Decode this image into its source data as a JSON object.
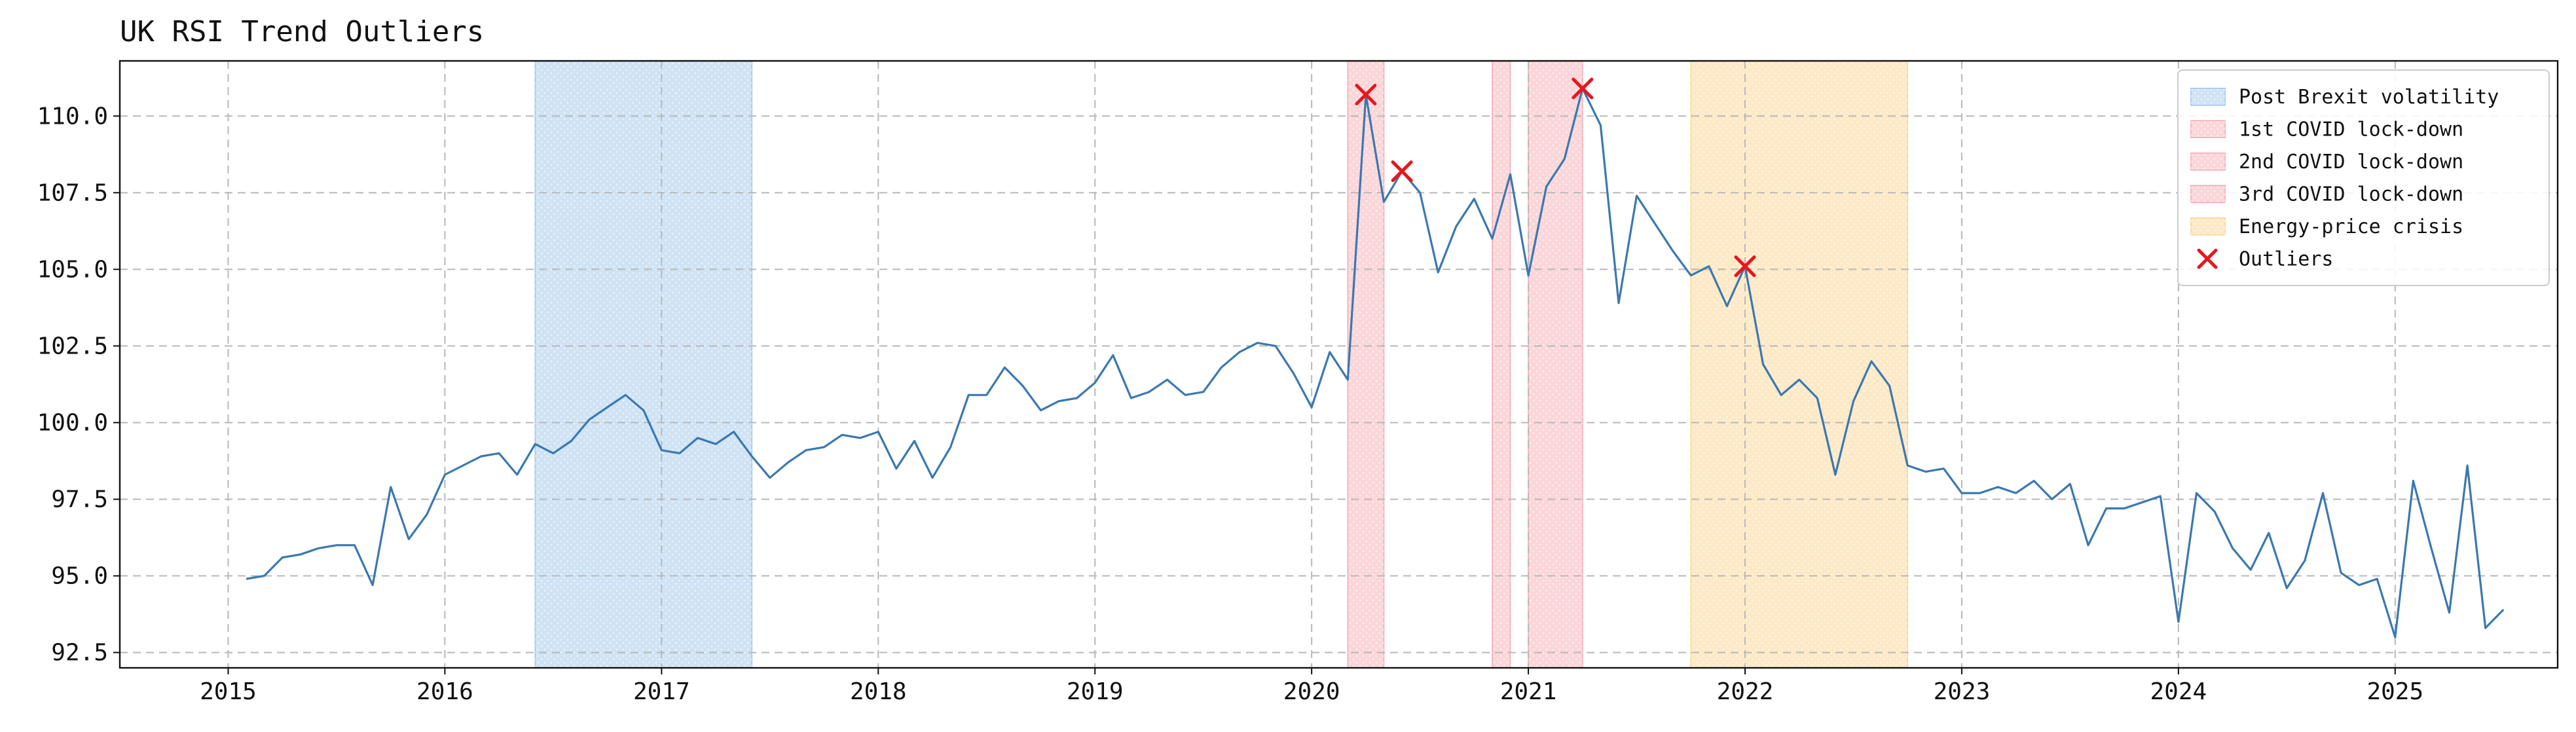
{
  "chart_data": {
    "type": "line",
    "title": "UK RSI Trend Outliers",
    "xlabel": "",
    "ylabel": "",
    "xlim": [
      "2014-07-01",
      "2025-10-01"
    ],
    "ylim": [
      92.0,
      111.8
    ],
    "x_ticks": [
      "2015",
      "2016",
      "2017",
      "2018",
      "2019",
      "2020",
      "2021",
      "2022",
      "2023",
      "2024",
      "2025"
    ],
    "y_ticks": [
      "92.5",
      "95.0",
      "97.5",
      "100.0",
      "102.5",
      "105.0",
      "107.5",
      "110.0"
    ],
    "grid": true,
    "legend_position": "top-right",
    "series": [
      {
        "color": "#3b78b0",
        "x": [
          "2015-02",
          "2015-03",
          "2015-04",
          "2015-05",
          "2015-06",
          "2015-07",
          "2015-08",
          "2015-09",
          "2015-10",
          "2015-11",
          "2015-12",
          "2016-01",
          "2016-02",
          "2016-03",
          "2016-04",
          "2016-05",
          "2016-06",
          "2016-07",
          "2016-08",
          "2016-09",
          "2016-10",
          "2016-11",
          "2016-12",
          "2017-01",
          "2017-02",
          "2017-03",
          "2017-04",
          "2017-05",
          "2017-06",
          "2017-07",
          "2017-08",
          "2017-09",
          "2017-10",
          "2017-11",
          "2017-12",
          "2018-01",
          "2018-02",
          "2018-03",
          "2018-04",
          "2018-05",
          "2018-06",
          "2018-07",
          "2018-08",
          "2018-09",
          "2018-10",
          "2018-11",
          "2018-12",
          "2019-01",
          "2019-02",
          "2019-03",
          "2019-04",
          "2019-05",
          "2019-06",
          "2019-07",
          "2019-08",
          "2019-09",
          "2019-10",
          "2019-11",
          "2019-12",
          "2020-01",
          "2020-02",
          "2020-03",
          "2020-04",
          "2020-05",
          "2020-06",
          "2020-07",
          "2020-08",
          "2020-09",
          "2020-10",
          "2020-11",
          "2020-12",
          "2021-01",
          "2021-02",
          "2021-03",
          "2021-04",
          "2021-05",
          "2021-06",
          "2021-07",
          "2021-08",
          "2021-09",
          "2021-10",
          "2021-11",
          "2021-12",
          "2022-01",
          "2022-02",
          "2022-03",
          "2022-04",
          "2022-05",
          "2022-06",
          "2022-07",
          "2022-08",
          "2022-09",
          "2022-10",
          "2022-11",
          "2022-12",
          "2023-01",
          "2023-02",
          "2023-03",
          "2023-04",
          "2023-05",
          "2023-06",
          "2023-07",
          "2023-08",
          "2023-09",
          "2023-10",
          "2023-11",
          "2023-12",
          "2024-01",
          "2024-02",
          "2024-03",
          "2024-04",
          "2024-05",
          "2024-06",
          "2024-07",
          "2024-08",
          "2024-09",
          "2024-10",
          "2024-11",
          "2024-12",
          "2025-01",
          "2025-02",
          "2025-03",
          "2025-04",
          "2025-05",
          "2025-06",
          "2025-07"
        ],
        "y": [
          94.9,
          95.0,
          95.6,
          95.7,
          95.9,
          96.0,
          96.0,
          94.7,
          97.9,
          96.2,
          97.0,
          98.3,
          98.6,
          98.9,
          99.0,
          98.3,
          99.3,
          99.0,
          99.4,
          100.1,
          100.5,
          100.9,
          100.4,
          99.1,
          99.0,
          99.5,
          99.3,
          99.7,
          98.9,
          98.2,
          98.7,
          99.1,
          99.2,
          99.6,
          99.5,
          99.7,
          98.5,
          99.4,
          98.2,
          99.2,
          100.9,
          100.9,
          101.8,
          101.2,
          100.4,
          100.7,
          100.8,
          101.3,
          102.2,
          100.8,
          101.0,
          101.4,
          100.9,
          101.0,
          101.8,
          102.3,
          102.6,
          102.5,
          101.6,
          100.5,
          102.3,
          101.4,
          110.7,
          107.2,
          108.2,
          107.5,
          104.9,
          106.4,
          107.3,
          106.0,
          108.1,
          104.8,
          107.7,
          108.6,
          110.9,
          109.7,
          103.9,
          107.4,
          106.5,
          105.6,
          104.8,
          105.1,
          103.8,
          105.1,
          101.9,
          100.9,
          101.4,
          100.8,
          98.3,
          100.7,
          102.0,
          101.2,
          98.6,
          98.4,
          98.5,
          97.7,
          97.7,
          97.9,
          97.7,
          98.1,
          97.5,
          98.0,
          96.0,
          97.2,
          97.2,
          97.4,
          97.6,
          93.5,
          97.7,
          97.1,
          95.9,
          95.2,
          96.4,
          94.6,
          95.5,
          97.7,
          95.1,
          94.7,
          94.9,
          93.0,
          98.1,
          95.9,
          93.8,
          98.6,
          93.3,
          93.9
        ]
      }
    ],
    "outliers": {
      "color": "#e8161d",
      "x": [
        "2020-04",
        "2020-06",
        "2021-04",
        "2022-01"
      ],
      "y": [
        110.7,
        108.2,
        110.9,
        105.1
      ]
    },
    "shaded_regions": [
      {
        "label": "Post Brexit volatility",
        "start": "2016-06",
        "end": "2017-06",
        "fill": "#cfe3f5",
        "edge": "#9cc4ea"
      },
      {
        "label": "1st COVID lock-down",
        "start": "2020-03",
        "end": "2020-05",
        "fill": "#fbd6d9",
        "edge": "#f3a9b0"
      },
      {
        "label": "2nd COVID lock-down",
        "start": "2020-11",
        "end": "2020-12",
        "fill": "#fbd6d9",
        "edge": "#f3a9b0"
      },
      {
        "label": "3rd COVID lock-down",
        "start": "2021-01",
        "end": "2021-04",
        "fill": "#fbd6d9",
        "edge": "#f3a9b0"
      },
      {
        "label": "Energy-price crisis",
        "start": "2021-10",
        "end": "2022-10",
        "fill": "#fde9c6",
        "edge": "#f8d48e"
      }
    ],
    "legend": [
      {
        "label": "Post Brexit volatility",
        "kind": "patch",
        "fill": "#cfe3f5",
        "edge": "#9cc4ea"
      },
      {
        "label": "1st COVID lock-down",
        "kind": "patch",
        "fill": "#fbd6d9",
        "edge": "#f3a9b0"
      },
      {
        "label": "2nd COVID lock-down",
        "kind": "patch",
        "fill": "#fbd6d9",
        "edge": "#f3a9b0"
      },
      {
        "label": "3rd COVID lock-down",
        "kind": "patch",
        "fill": "#fbd6d9",
        "edge": "#f3a9b0"
      },
      {
        "label": "Energy-price crisis",
        "kind": "patch",
        "fill": "#fde9c6",
        "edge": "#f8d48e"
      },
      {
        "label": "Outliers",
        "kind": "marker",
        "color": "#e8161d"
      }
    ]
  }
}
